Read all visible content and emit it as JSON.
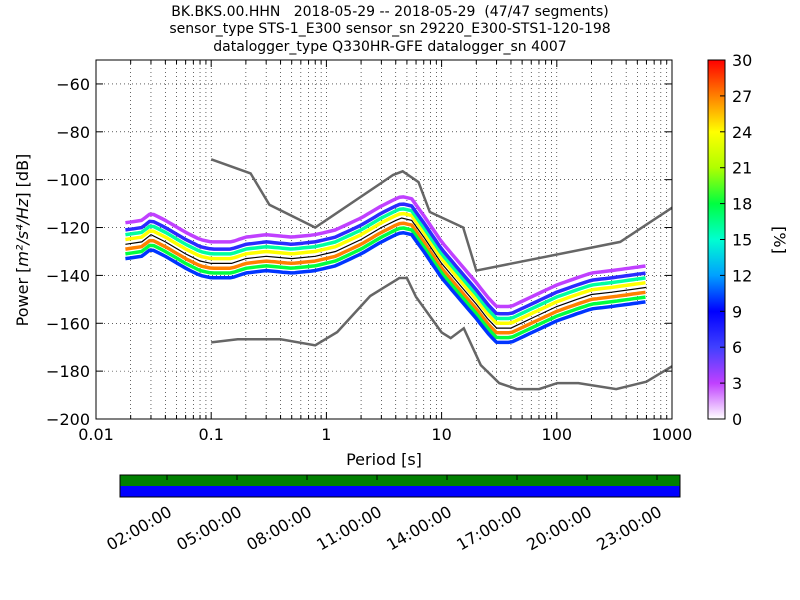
{
  "header": {
    "title_line1": "BK.BKS.00.HHN   2018-05-29 -- 2018-05-29  (47/47 segments)",
    "title_line2": "sensor_type STS-1_E300 sensor_sn 29220_E300-STS1-120-198",
    "title_line3": "datalogger_type Q330HR-GFE datalogger_sn 4007"
  },
  "chart_data": {
    "type": "heatmap",
    "xlabel": "Period [s]",
    "ylabel_prefix": "Power [",
    "ylabel_units": "m²/s⁴/Hz",
    "ylabel_suffix": "] [dB]",
    "x_scale": "log",
    "xlim": [
      0.01,
      1000
    ],
    "ylim": [
      -200,
      -50
    ],
    "x_ticks": [
      0.01,
      0.1,
      1,
      10,
      100,
      1000
    ],
    "x_tick_labels": [
      "0.01",
      "0.1",
      "1",
      "10",
      "100",
      "1000"
    ],
    "y_ticks": [
      -200,
      -180,
      -160,
      -140,
      -120,
      -100,
      -80,
      -60
    ],
    "y_tick_labels": [
      "−200",
      "−180",
      "−160",
      "−140",
      "−120",
      "−100",
      "−80",
      "−60"
    ],
    "grid": "dotted",
    "colorbar": {
      "label": "[%]",
      "min": 0,
      "max": 30,
      "ticks": [
        0,
        3,
        6,
        9,
        12,
        15,
        18,
        21,
        24,
        27,
        30
      ],
      "tick_labels": [
        "0",
        "3",
        "6",
        "9",
        "12",
        "15",
        "18",
        "21",
        "24",
        "27",
        "30"
      ]
    },
    "noise_models": [
      {
        "name": "NHNM",
        "color": "#666666",
        "points": [
          [
            0.1,
            -91.5
          ],
          [
            0.22,
            -97.4
          ],
          [
            0.32,
            -110.5
          ],
          [
            0.8,
            -120
          ],
          [
            3.8,
            -98
          ],
          [
            4.6,
            -96.5
          ],
          [
            6.3,
            -101
          ],
          [
            7.9,
            -113.5
          ],
          [
            15.4,
            -120
          ],
          [
            20,
            -138
          ],
          [
            354.8,
            -126
          ],
          [
            10000,
            -80
          ]
        ]
      },
      {
        "name": "NLNM",
        "color": "#666666",
        "points": [
          [
            0.1,
            -168
          ],
          [
            0.17,
            -166.7
          ],
          [
            0.4,
            -166.7
          ],
          [
            0.8,
            -169.2
          ],
          [
            1.24,
            -163.7
          ],
          [
            2.4,
            -148.6
          ],
          [
            4.3,
            -141.1
          ],
          [
            5,
            -141.1
          ],
          [
            6,
            -149
          ],
          [
            10,
            -163.8
          ],
          [
            12,
            -166.2
          ],
          [
            15.6,
            -162.1
          ],
          [
            21.9,
            -177.5
          ],
          [
            31.6,
            -185
          ],
          [
            45,
            -187.5
          ],
          [
            70,
            -187.5
          ],
          [
            101,
            -185
          ],
          [
            154,
            -185
          ],
          [
            328,
            -187.5
          ],
          [
            600,
            -184.4
          ],
          [
            1000,
            -178
          ]
        ]
      }
    ],
    "mean_curve": {
      "color": "#000000",
      "points": [
        [
          0.018,
          -127
        ],
        [
          0.025,
          -126
        ],
        [
          0.03,
          -123
        ],
        [
          0.04,
          -126
        ],
        [
          0.06,
          -131
        ],
        [
          0.08,
          -134
        ],
        [
          0.1,
          -135
        ],
        [
          0.15,
          -135
        ],
        [
          0.2,
          -133
        ],
        [
          0.3,
          -132
        ],
        [
          0.5,
          -133
        ],
        [
          0.8,
          -132
        ],
        [
          1.2,
          -130
        ],
        [
          2,
          -125
        ],
        [
          3,
          -120
        ],
        [
          4,
          -117
        ],
        [
          4.5,
          -116
        ],
        [
          5.5,
          -117
        ],
        [
          7,
          -124
        ],
        [
          10,
          -135
        ],
        [
          15,
          -145
        ],
        [
          20,
          -152
        ],
        [
          25,
          -158
        ],
        [
          30,
          -162
        ],
        [
          40,
          -162
        ],
        [
          60,
          -158
        ],
        [
          100,
          -153
        ],
        [
          150,
          -150
        ],
        [
          200,
          -148
        ],
        [
          300,
          -147
        ],
        [
          600,
          -145
        ]
      ]
    },
    "distribution_series": [
      {
        "offset_db": -2,
        "percent": 27
      },
      {
        "offset_db": 2,
        "percent": 24
      },
      {
        "offset_db": -4,
        "percent": 18
      },
      {
        "offset_db": 4,
        "percent": 16
      },
      {
        "offset_db": -6,
        "percent": 10
      },
      {
        "offset_db": 6,
        "percent": 7
      },
      {
        "offset_db": 9,
        "percent": 3
      }
    ],
    "time_bar": {
      "top_color": "#007f00",
      "bottom_color": "#0000ff",
      "tick_labels": [
        "02:00:00",
        "05:00:00",
        "08:00:00",
        "11:00:00",
        "14:00:00",
        "17:00:00",
        "20:00:00",
        "23:00:00"
      ]
    }
  }
}
